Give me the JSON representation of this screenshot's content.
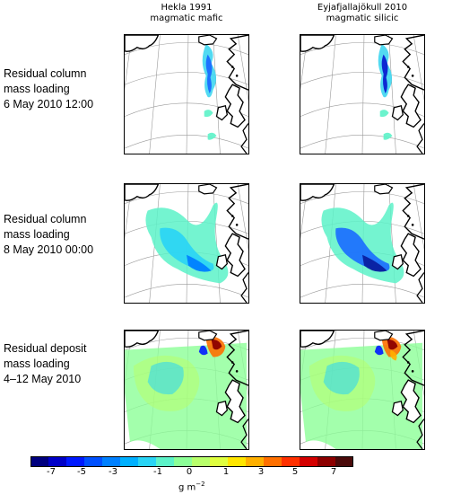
{
  "columns": [
    {
      "line1": "Hekla 1991",
      "line2": "magmatic mafic"
    },
    {
      "line1": "Eyjafjallajökull 2010",
      "line2": "magmatic silicic"
    }
  ],
  "rows": [
    {
      "line1": "Residual column",
      "line2": "mass loading",
      "line3": "6 May 2010 12:00"
    },
    {
      "line1": "Residual column",
      "line2": "mass loading",
      "line3": "8 May 2010 00:00"
    },
    {
      "line1": "Residual deposit",
      "line2": "mass loading",
      "line3": "4–12 May 2010"
    }
  ],
  "colorbar": {
    "ticks": [
      "-7",
      "-5",
      "-3",
      "-1",
      "0",
      "1",
      "3",
      "5",
      "7"
    ],
    "unit": "g m",
    "unit_exp": "−2",
    "colors": [
      "#00007f",
      "#0000c8",
      "#0019ff",
      "#0050ff",
      "#0080ff",
      "#00b0ff",
      "#29d4f5",
      "#5cf2c8",
      "#8cff97",
      "#b8ff6b",
      "#dfff3f",
      "#ffe600",
      "#ffb000",
      "#ff7000",
      "#ff3000",
      "#d40000",
      "#8c0000",
      "#4a0a0a"
    ]
  },
  "chart_data": {
    "type": "heatmap",
    "title": "",
    "panels": [
      {
        "row": 0,
        "col": 0,
        "quantity": "Residual column mass loading",
        "time": "6 May 2010 12:00",
        "source": "Hekla 1991 magmatic mafic"
      },
      {
        "row": 0,
        "col": 1,
        "quantity": "Residual column mass loading",
        "time": "6 May 2010 12:00",
        "source": "Eyjafjallajökull 2010 magmatic silicic"
      },
      {
        "row": 1,
        "col": 0,
        "quantity": "Residual column mass loading",
        "time": "8 May 2010 00:00",
        "source": "Hekla 1991 magmatic mafic"
      },
      {
        "row": 1,
        "col": 1,
        "quantity": "Residual column mass loading",
        "time": "8 May 2010 00:00",
        "source": "Eyjafjallajökull 2010 magmatic silicic"
      },
      {
        "row": 2,
        "col": 0,
        "quantity": "Residual deposit mass loading",
        "time": "4–12 May 2010",
        "source": "Hekla 1991 magmatic mafic"
      },
      {
        "row": 2,
        "col": 1,
        "quantity": "Residual deposit mass loading",
        "time": "4–12 May 2010",
        "source": "Eyjafjallajökull 2010 magmatic silicic"
      }
    ],
    "colorbar_range": [
      -8,
      8
    ],
    "colorbar_unit": "g m^-2"
  }
}
